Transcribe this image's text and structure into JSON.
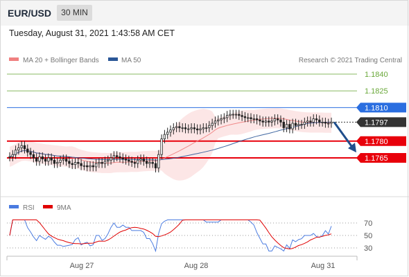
{
  "header": {
    "symbol": "EUR/USD",
    "timeframe": "30 MIN"
  },
  "datetime": "Tuesday, August 31, 2021 1:43:58 AM CET",
  "legend": {
    "ma": "MA 20 + Bollinger Bands",
    "ma50": "MA 50",
    "credit": "Research © 2021 Trading Central",
    "rsi": "RSI",
    "rsi_ma": "9MA"
  },
  "colors": {
    "bollinger": "#f08080",
    "ma50": "#2b5797",
    "resistance": "#6aa83a",
    "pivot": "#2a6ee0",
    "support": "#e8000b",
    "current": "#333333",
    "arrow": "#1f4e8c",
    "rsi": "#4a7be0",
    "rsi_ma": "#e00000"
  },
  "chart_data": [
    {
      "type": "candlestick",
      "title": "EUR/USD 30 MIN",
      "x_ticks": [
        "Aug 27",
        "Aug 28",
        "Aug 31"
      ],
      "ylim": [
        1.1745,
        1.185
      ],
      "levels": [
        {
          "label": "1.1840",
          "value": 1.184,
          "kind": "resistance"
        },
        {
          "label": "1.1825",
          "value": 1.1825,
          "kind": "resistance"
        },
        {
          "label": "1.1810",
          "value": 1.181,
          "kind": "pivot"
        },
        {
          "label": "1.1797",
          "value": 1.1797,
          "kind": "current"
        },
        {
          "label": "1.1780",
          "value": 1.178,
          "kind": "support"
        },
        {
          "label": "1.1765",
          "value": 1.1765,
          "kind": "support"
        }
      ],
      "forecast": "bearish",
      "series": [
        {
          "name": "EUR/USD",
          "close": [
            1.1766,
            1.1768,
            1.1772,
            1.1774,
            1.1776,
            1.1773,
            1.177,
            1.1768,
            1.1765,
            1.1762,
            1.1766,
            1.1764,
            1.1762,
            1.1765,
            1.1763,
            1.176,
            1.1761,
            1.1763,
            1.1764,
            1.1762,
            1.176,
            1.1759,
            1.1761,
            1.176,
            1.1758,
            1.1758,
            1.1757,
            1.1758,
            1.1757,
            1.176,
            1.1761,
            1.176,
            1.1762,
            1.1763,
            1.1765,
            1.1767,
            1.1766,
            1.1765,
            1.1764,
            1.1763,
            1.1762,
            1.1761,
            1.176,
            1.1763,
            1.1764,
            1.1762,
            1.176,
            1.1761,
            1.176,
            1.1756,
            1.1768,
            1.1782,
            1.1786,
            1.1788,
            1.179,
            1.1792,
            1.1793,
            1.1792,
            1.1792,
            1.1791,
            1.1791,
            1.1792,
            1.1791,
            1.179,
            1.1791,
            1.1792,
            1.1792,
            1.1794,
            1.1796,
            1.1798,
            1.1799,
            1.18,
            1.1801,
            1.1803,
            1.1804,
            1.1804,
            1.1804,
            1.1803,
            1.1802,
            1.1801,
            1.1801,
            1.18,
            1.18,
            1.1799,
            1.1798,
            1.1797,
            1.1798,
            1.1797,
            1.1798,
            1.18,
            1.1799,
            1.1797,
            1.1792,
            1.1795,
            1.1791,
            1.1796,
            1.1794,
            1.1795,
            1.1795,
            1.1797,
            1.1798,
            1.1797,
            1.18,
            1.1799,
            1.1797,
            1.1797,
            1.1796,
            1.1796,
            1.1797
          ]
        },
        {
          "name": "MA 20 + Bollinger Bands"
        },
        {
          "name": "MA 50"
        }
      ]
    },
    {
      "type": "line",
      "title": "RSI",
      "y_ticks": [
        "70",
        "50",
        "30"
      ],
      "ylim": [
        20,
        80
      ],
      "series": [
        {
          "name": "RSI"
        },
        {
          "name": "9MA"
        }
      ]
    }
  ]
}
